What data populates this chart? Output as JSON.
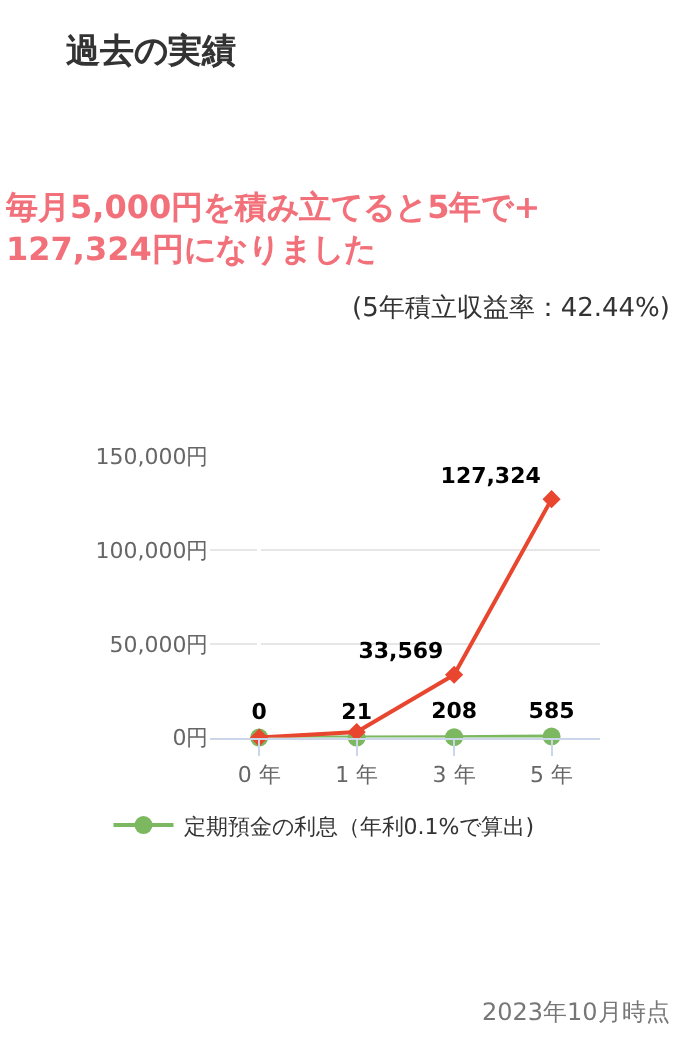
{
  "chart_data": {
    "type": "line",
    "title": "過去の実績",
    "subtitle": "毎月5,000円を積み立てると5年で+127,324円になりました",
    "annotations": [
      "(5年積立収益率：42.44%)",
      "2023年10月時点"
    ],
    "categories": [
      "0 年",
      "1 年",
      "3 年",
      "5 年"
    ],
    "series": [
      {
        "name": "定期預金の利息（年利0.1%で算出)",
        "color": "#7cb860",
        "marker": "circle",
        "values": [
          0,
          21,
          208,
          585
        ],
        "value_labels": [
          "0",
          "21",
          "208",
          "585"
        ]
      },
      {
        "color": "#e8462f",
        "marker": "diamond",
        "values": [
          0,
          3000,
          33569,
          127324
        ],
        "value_labels": [
          null,
          null,
          "33,569",
          "127,324"
        ]
      }
    ],
    "ylim": [
      0,
      150000
    ],
    "yticks": [
      {
        "value": 0,
        "label": "0円"
      },
      {
        "value": 50000,
        "label": "50,000円"
      },
      {
        "value": 100000,
        "label": "100,000円"
      },
      {
        "value": 150000,
        "label": "150,000円"
      }
    ],
    "grid": "y",
    "legend": "bottom"
  }
}
